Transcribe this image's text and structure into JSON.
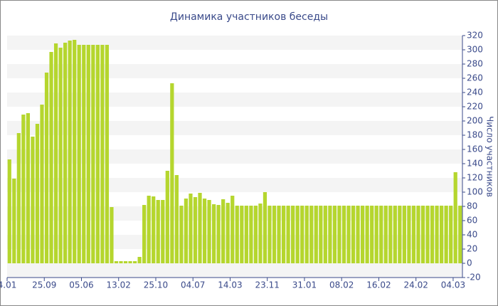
{
  "chart_data": {
    "type": "bar",
    "title": "Динамика участников беседы",
    "y_label": "Число участников",
    "categories": [
      "4.01",
      null,
      null,
      null,
      null,
      null,
      null,
      null,
      "25.09",
      null,
      null,
      null,
      null,
      null,
      null,
      null,
      "05.06",
      null,
      null,
      null,
      null,
      null,
      null,
      null,
      "13.02",
      null,
      null,
      null,
      null,
      null,
      null,
      null,
      "25.10",
      null,
      null,
      null,
      null,
      null,
      null,
      null,
      "04.07",
      null,
      null,
      null,
      null,
      null,
      null,
      null,
      "14.03",
      null,
      null,
      null,
      null,
      null,
      null,
      null,
      "23.11",
      null,
      null,
      null,
      null,
      null,
      null,
      null,
      "31.01",
      null,
      null,
      null,
      null,
      null,
      null,
      null,
      "08.02",
      null,
      null,
      null,
      null,
      null,
      null,
      null,
      "16.02",
      null,
      null,
      null,
      null,
      null,
      null,
      null,
      "24.02",
      null,
      null,
      null,
      null,
      null,
      null,
      null,
      "04.03",
      null
    ],
    "values": [
      146,
      119,
      183,
      209,
      211,
      178,
      196,
      223,
      268,
      297,
      309,
      303,
      310,
      313,
      314,
      307,
      307,
      307,
      307,
      307,
      307,
      307,
      79,
      3,
      3,
      3,
      3,
      3,
      9,
      82,
      95,
      94,
      89,
      89,
      130,
      253,
      124,
      81,
      91,
      98,
      93,
      99,
      91,
      89,
      83,
      82,
      90,
      85,
      95,
      81,
      81,
      81,
      81,
      81,
      84,
      100,
      81,
      81,
      81,
      81,
      81,
      81,
      81,
      81,
      81,
      81,
      81,
      81,
      81,
      81,
      81,
      81,
      81,
      81,
      81,
      81,
      81,
      81,
      81,
      81,
      81,
      81,
      81,
      81,
      81,
      81,
      81,
      81,
      81,
      81,
      81,
      81,
      81,
      81,
      81,
      81,
      128,
      81
    ],
    "color": "#b5d62e",
    "ylim": [
      -20,
      320
    ],
    "yticks": [
      -20,
      0,
      20,
      40,
      60,
      80,
      100,
      120,
      140,
      160,
      180,
      200,
      220,
      240,
      260,
      280,
      300,
      320
    ],
    "grid": true
  }
}
